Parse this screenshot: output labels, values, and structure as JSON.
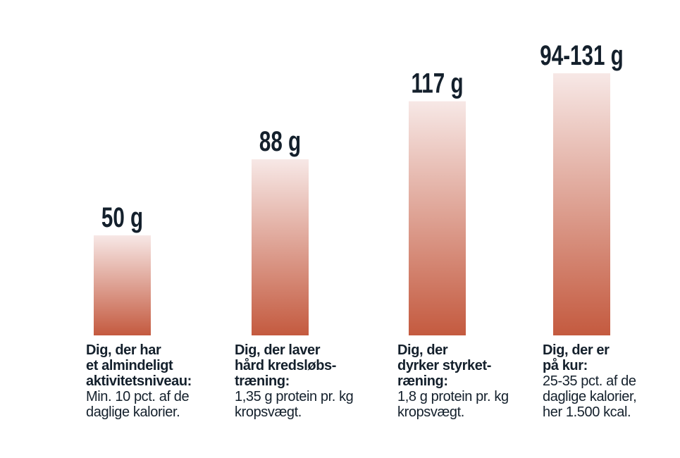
{
  "chart_data": {
    "type": "bar",
    "categories": [
      "Dig, der har et almindeligt aktivitetsniveau",
      "Dig, der laver hård kredsløbstræning",
      "Dig, der dyrker styrketræning",
      "Dig, der er på kur"
    ],
    "values": [
      50,
      88,
      117,
      131
    ],
    "value_ranges": [
      null,
      null,
      null,
      [
        94,
        131
      ]
    ],
    "unit": "g",
    "data_labels": [
      "50 g",
      "88 g",
      "117 g",
      "94-131 g"
    ],
    "ylim": [
      0,
      131
    ],
    "bar_gradient": [
      "#f7e8e6",
      "#c45a3f"
    ],
    "label_color": "#14202c",
    "descriptions": [
      {
        "heading": "Dig, der har\net almindeligt\naktivitetsniveau:",
        "detail": "Min. 10 pct. af de\ndaglige kalorier."
      },
      {
        "heading": "Dig, der laver\nhård kredsløbs-\ntræning:",
        "detail": "1,35 g protein pr. kg\nkropsvægt."
      },
      {
        "heading": "Dig, der\ndyrker styrket-\nræning:",
        "detail": "1,8 g protein pr. kg\nkropsvægt."
      },
      {
        "heading": "Dig, der er\npå kur:",
        "detail": "25-35 pct. af de\ndaglige kalorier,\nher 1.500 kcal."
      }
    ]
  }
}
